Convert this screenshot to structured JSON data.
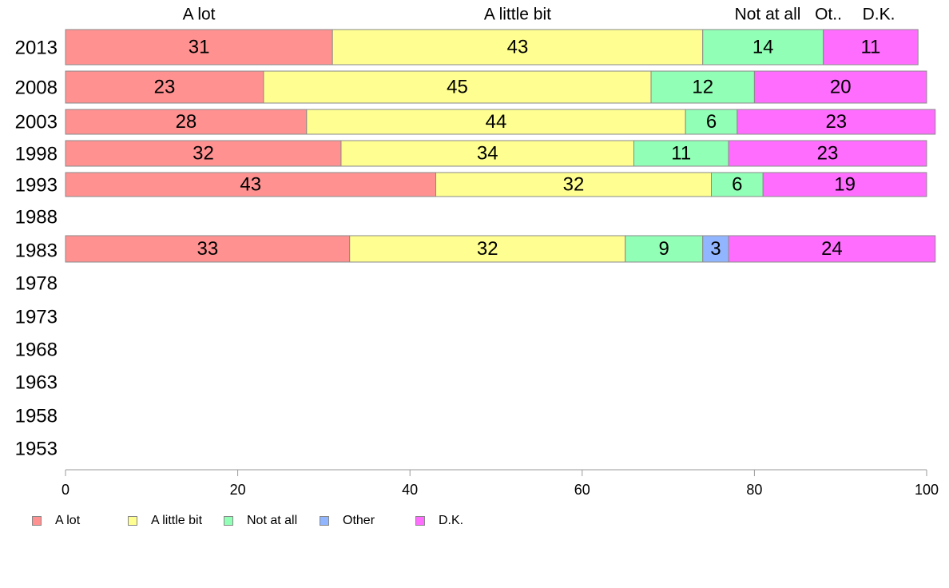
{
  "chart_data": {
    "type": "bar",
    "orientation": "horizontal",
    "stacked": true,
    "categories": [
      "2013",
      "2008",
      "2003",
      "1998",
      "1993",
      "1988",
      "1983",
      "1978",
      "1973",
      "1968",
      "1963",
      "1958",
      "1953"
    ],
    "series": [
      {
        "name": "A lot",
        "color": "#ff9191",
        "values": [
          31,
          23,
          28,
          32,
          43,
          null,
          33,
          null,
          null,
          null,
          null,
          null,
          null
        ]
      },
      {
        "name": "A little bit",
        "color": "#ffff91",
        "values": [
          43,
          45,
          44,
          34,
          32,
          null,
          32,
          null,
          null,
          null,
          null,
          null,
          null
        ]
      },
      {
        "name": "Not at all",
        "color": "#91ffb6",
        "values": [
          14,
          12,
          6,
          11,
          6,
          null,
          9,
          null,
          null,
          null,
          null,
          null,
          null
        ]
      },
      {
        "name": "Other",
        "color": "#91b6ff",
        "values": [
          0,
          0,
          0,
          0,
          0,
          null,
          3,
          null,
          null,
          null,
          null,
          null,
          null
        ]
      },
      {
        "name": "D.K.",
        "color": "#ff6dff",
        "values": [
          11,
          20,
          23,
          23,
          19,
          null,
          24,
          null,
          null,
          null,
          null,
          null,
          null
        ]
      }
    ],
    "top_labels": [
      "A lot",
      "A little bit",
      "Not at all",
      "Ot..",
      "D.K."
    ],
    "xlim": [
      0,
      100
    ],
    "xticks": [
      0,
      20,
      40,
      60,
      80,
      100
    ],
    "grid": false,
    "legend_position": "bottom-left",
    "title": "",
    "xlabel": "",
    "ylabel": ""
  }
}
